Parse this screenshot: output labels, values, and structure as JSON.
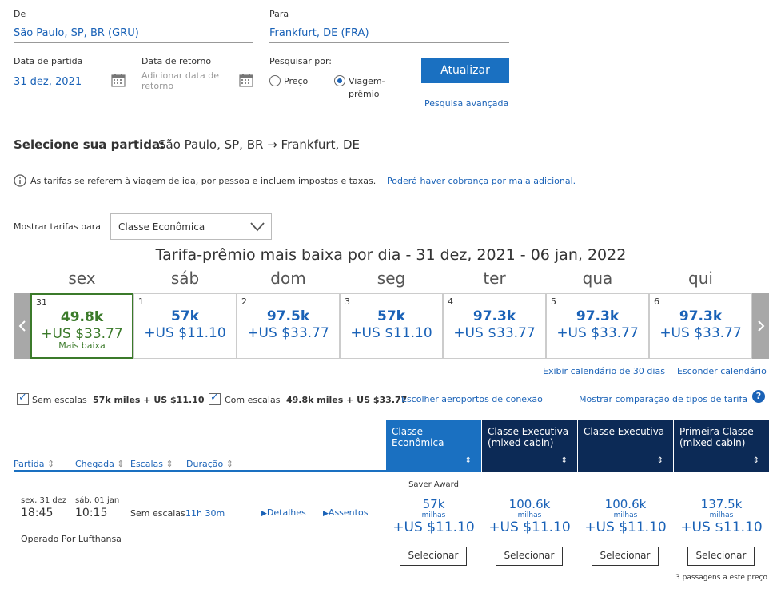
{
  "search": {
    "from_label": "De",
    "from_value": "São Paulo, SP, BR (GRU)",
    "to_label": "Para",
    "to_value": "Frankfurt, DE (FRA)",
    "depart_label": "Data de partida",
    "depart_value": "31 dez, 2021",
    "return_label": "Data de retorno",
    "return_placeholder": "Adicionar data de retorno",
    "search_by_label": "Pesquisar por:",
    "option_price": "Preço",
    "option_award_line1": "Viagem-",
    "option_award_line2": "prêmio",
    "update_button": "Atualizar",
    "advanced_search": "Pesquisa avançada"
  },
  "select_departure": {
    "label": "Selecione sua partida:",
    "route": "São Paulo, SP, BR → Frankfurt, DE"
  },
  "notice": {
    "text": "As tarifas se referem à viagem de ida, por pessoa e incluem impostos e taxas.",
    "link": "Poderá haver cobrança por mala adicional."
  },
  "fare_class": {
    "label": "Mostrar tarifas para",
    "selected": "Classe Econômica"
  },
  "calendar": {
    "title": "Tarifa-prêmio mais baixa por dia - 31 dez, 2021 - 06 jan, 2022",
    "days": [
      {
        "name": "sex",
        "num": "31",
        "miles": "49.8k",
        "price": "+US $33.77",
        "note": "Mais baixa"
      },
      {
        "name": "sáb",
        "num": "1",
        "miles": "57k",
        "price": "+US $11.10",
        "note": ""
      },
      {
        "name": "dom",
        "num": "2",
        "miles": "97.5k",
        "price": "+US $33.77",
        "note": ""
      },
      {
        "name": "seg",
        "num": "3",
        "miles": "57k",
        "price": "+US $11.10",
        "note": ""
      },
      {
        "name": "ter",
        "num": "4",
        "miles": "97.3k",
        "price": "+US $33.77",
        "note": ""
      },
      {
        "name": "qua",
        "num": "5",
        "miles": "97.3k",
        "price": "+US $33.77",
        "note": ""
      },
      {
        "name": "qui",
        "num": "6",
        "miles": "97.3k",
        "price": "+US $33.77",
        "note": ""
      }
    ],
    "link_30days": "Exibir calendário de 30 dias",
    "link_hide": "Esconder calendário"
  },
  "filters": {
    "nonstop_label": "Sem escalas",
    "nonstop_value": "57k miles + US $11.10",
    "connecting_label": "Com escalas",
    "connecting_value": "49.8k miles + US $33.77",
    "choose_airports": "Escolher aeroportos de conexão",
    "compare_types": "Mostrar comparação de tipos de tarifa"
  },
  "table": {
    "sort_cols": [
      "Partida",
      "Chegada",
      "Escalas",
      "Duração"
    ],
    "fare_cols": [
      {
        "line1": "Classe Econômica",
        "line2": "",
        "color": "#1a70c1"
      },
      {
        "line1": "Classe Executiva",
        "line2": "(mixed cabin)",
        "color": "#0c2a56"
      },
      {
        "line1": "Classe Executiva",
        "line2": "",
        "color": "#0c2a56"
      },
      {
        "line1": "Primeira Classe",
        "line2": "(mixed cabin)",
        "color": "#0c2a56"
      }
    ],
    "flight": {
      "dep_date": "sex, 31 dez",
      "dep_time": "18:45",
      "arr_date": "sáb, 01 jan",
      "arr_time": "10:15",
      "stops": "Sem escalas",
      "duration": "11h 30m",
      "details": "Detalhes",
      "seats": "Assentos",
      "operated": "Operado Por Lufthansa",
      "saver": "Saver Award",
      "fares": [
        {
          "miles": "57k",
          "unit": "milhas",
          "price": "+US $11.10",
          "button": "Selecionar"
        },
        {
          "miles": "100.6k",
          "unit": "milhas",
          "price": "+US $11.10",
          "button": "Selecionar"
        },
        {
          "miles": "100.6k",
          "unit": "milhas",
          "price": "+US $11.10",
          "button": "Selecionar"
        },
        {
          "miles": "137.5k",
          "unit": "milhas",
          "price": "+US $11.10",
          "button": "Selecionar"
        }
      ],
      "seats_left": "3 passagens a este preço"
    }
  }
}
